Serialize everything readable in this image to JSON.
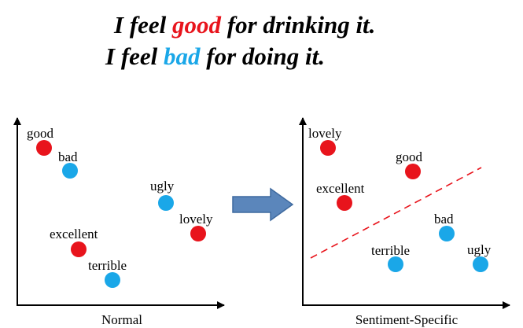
{
  "title": {
    "line1": {
      "before": "I feel ",
      "keyword": "good",
      "after": " for drinking it.",
      "keyword_color": "#e8141c"
    },
    "line2": {
      "before": "I feel ",
      "keyword": "bad",
      "after": " for doing it.",
      "keyword_color": "#1aa7e8"
    }
  },
  "colors": {
    "positive": "#e8141c",
    "negative": "#1aa7e8",
    "arrow_fill": "#5b86bb",
    "arrow_stroke": "#3f6a9f",
    "divider": "#e8141c"
  },
  "panels": [
    {
      "caption": "Normal",
      "words": [
        {
          "label": "good",
          "sentiment": "positive"
        },
        {
          "label": "bad",
          "sentiment": "negative"
        },
        {
          "label": "ugly",
          "sentiment": "negative"
        },
        {
          "label": "lovely",
          "sentiment": "positive"
        },
        {
          "label": "excellent",
          "sentiment": "positive"
        },
        {
          "label": "terrible",
          "sentiment": "negative"
        }
      ]
    },
    {
      "caption": "Sentiment-Specific",
      "words": [
        {
          "label": "lovely",
          "sentiment": "positive"
        },
        {
          "label": "good",
          "sentiment": "positive"
        },
        {
          "label": "excellent",
          "sentiment": "positive"
        },
        {
          "label": "bad",
          "sentiment": "negative"
        },
        {
          "label": "terrible",
          "sentiment": "negative"
        },
        {
          "label": "ugly",
          "sentiment": "negative"
        }
      ]
    }
  ]
}
